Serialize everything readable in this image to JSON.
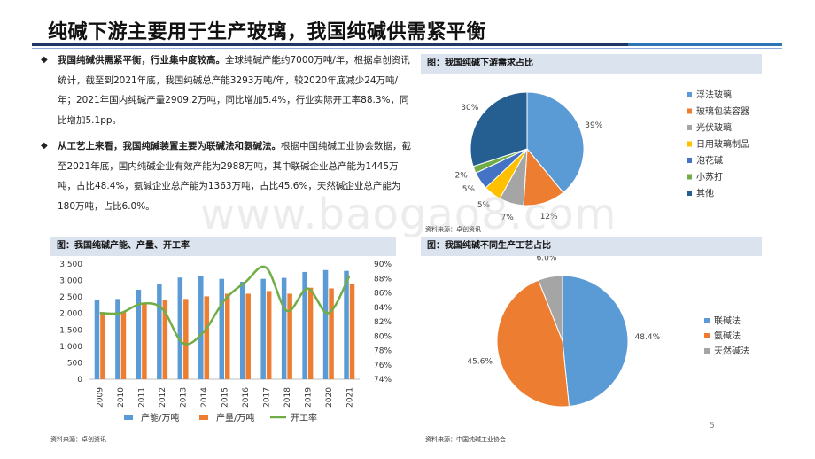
{
  "title": "纯碱下游主要用于生产玻璃，我国纯碱供需紧平衡",
  "bullets": [
    {
      "mark": "◆",
      "bold": "我国纯碱供需紧平衡，行业集中度较高。",
      "text": "全球纯碱产能约7000万吨/年，根据卓创资讯统计，截至到2021年底，我国纯碱总产能3293万吨/年，较2020年底减少24万吨/年；2021年国内纯碱产量2909.2万吨，同比增加5.4%，行业实际开工率88.3%，同比增加5.1pp。"
    },
    {
      "mark": "◆",
      "bold": "从工艺上来看，我国纯碱装置主要为联碱法和氨碱法。",
      "text": "根据中国纯碱工业协会数据，截至2021年底，国内纯碱企业有效产能为2988万吨，其中联碱企业总产能为1445万吨，占比48.4%，氨碱企业总产能为1363万吨，占比45.6%，天然碱企业总产能为180万吨，占比6.0%。"
    }
  ],
  "panels": {
    "pie1_title": "图：我国纯碱下游需求占比",
    "pie1_source": "资料来源：卓创资讯",
    "combo_title": "图：我国纯碱产能、产量、开工率",
    "combo_source": "资料来源：卓创资讯",
    "pie2_title": "图：我国纯碱不同生产工艺占比",
    "pie2_source": "资料来源：中国纯碱工业协会"
  },
  "watermark": "www.baogao8.com",
  "page_number": "5",
  "chart_data": [
    {
      "type": "pie",
      "title": "图：我国纯碱下游需求占比",
      "labels": [
        "浮法玻璃",
        "玻璃包装容器",
        "光伏玻璃",
        "日用玻璃制品",
        "泡花碱",
        "小苏打",
        "其他"
      ],
      "values": [
        39,
        12,
        7,
        5,
        5,
        2,
        30
      ],
      "value_labels": [
        "39%",
        "12%",
        "7%",
        "5%",
        "5%",
        "2%",
        "30%"
      ],
      "colors": [
        "#5b9bd5",
        "#ed7d31",
        "#a5a5a5",
        "#ffc000",
        "#4472c4",
        "#70ad47",
        "#255e91"
      ],
      "legend": "right"
    },
    {
      "type": "bar",
      "title": "图：我国纯碱产能、产量、开工率",
      "categories": [
        "2009",
        "2010",
        "2011",
        "2012",
        "2013",
        "2014",
        "2015",
        "2016",
        "2017",
        "2018",
        "2019",
        "2020",
        "2021"
      ],
      "series": [
        {
          "name": "产能/万吨",
          "type": "bar",
          "axis": "left",
          "color": "#5b9bd5",
          "values": [
            2410,
            2440,
            2720,
            2880,
            3090,
            3140,
            3050,
            2960,
            3050,
            3080,
            3260,
            3317,
            3293
          ]
        },
        {
          "name": "产量/万吨",
          "type": "bar",
          "axis": "left",
          "color": "#ed7d31",
          "values": [
            2040,
            2050,
            2300,
            2400,
            2440,
            2520,
            2600,
            2600,
            2680,
            2600,
            2780,
            2760,
            2909
          ]
        },
        {
          "name": "开工率",
          "type": "line",
          "axis": "right",
          "color": "#70ad47",
          "values": [
            83.2,
            83.2,
            84.5,
            83.8,
            79.0,
            80.6,
            85.0,
            87.5,
            89.5,
            83.5,
            86.6,
            83.2,
            88.3
          ]
        }
      ],
      "y_left": {
        "lim": [
          0,
          3500
        ],
        "ticks": [
          "0",
          "500",
          "1,000",
          "1,500",
          "2,000",
          "2,500",
          "3,000",
          "3,500"
        ]
      },
      "y_right": {
        "lim": [
          74,
          90
        ],
        "ticks": [
          "74%",
          "76%",
          "78%",
          "80%",
          "82%",
          "84%",
          "86%",
          "88%",
          "90%"
        ]
      },
      "legend": "bottom",
      "grid": false
    },
    {
      "type": "pie",
      "title": "图：我国纯碱不同生产工艺占比",
      "labels": [
        "联碱法",
        "氨碱法",
        "天然碱法"
      ],
      "values": [
        48.4,
        45.6,
        6.0
      ],
      "value_labels": [
        "48.4%",
        "45.6%",
        "6.0%"
      ],
      "colors": [
        "#5b9bd5",
        "#ed7d31",
        "#a5a5a5"
      ],
      "legend": "right"
    }
  ]
}
